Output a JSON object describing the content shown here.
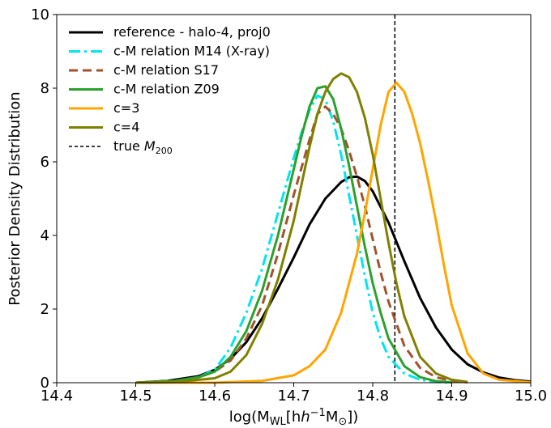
{
  "chart_data": {
    "type": "line",
    "xlabel": "log(M_WL[h^-1 M_☉])",
    "ylabel": "Posterior Density Distribution",
    "xlim": [
      14.4,
      15.0
    ],
    "ylim": [
      0,
      10
    ],
    "x_ticks": [
      "14.4",
      "14.5",
      "14.6",
      "14.7",
      "14.8",
      "14.9",
      "15.0"
    ],
    "y_ticks": [
      "0",
      "2",
      "4",
      "6",
      "8",
      "10"
    ],
    "legend_position": "top-left",
    "grid": false,
    "true_m200": 14.828,
    "series": [
      {
        "name": "reference - halo-4, proj0",
        "color": "#000000",
        "style": "solid",
        "x": [
          14.5,
          14.54,
          14.58,
          14.6,
          14.62,
          14.64,
          14.66,
          14.68,
          14.7,
          14.72,
          14.74,
          14.76,
          14.77,
          14.78,
          14.79,
          14.8,
          14.82,
          14.84,
          14.86,
          14.88,
          14.9,
          14.92,
          14.94,
          14.96,
          14.98,
          15.0
        ],
        "y": [
          0.0,
          0.05,
          0.18,
          0.35,
          0.65,
          1.1,
          1.75,
          2.55,
          3.4,
          4.3,
          5.0,
          5.45,
          5.58,
          5.6,
          5.48,
          5.2,
          4.35,
          3.3,
          2.3,
          1.5,
          0.9,
          0.5,
          0.28,
          0.14,
          0.07,
          0.03
        ]
      },
      {
        "name": "c-M relation M14 (X-ray)",
        "color": "#00e5ee",
        "style": "dashdot",
        "x": [
          14.5,
          14.55,
          14.58,
          14.6,
          14.62,
          14.64,
          14.66,
          14.68,
          14.7,
          14.71,
          14.72,
          14.73,
          14.74,
          14.75,
          14.76,
          14.77,
          14.78,
          14.79,
          14.8,
          14.81,
          14.82,
          14.84,
          14.86,
          14.88,
          14.9
        ],
        "y": [
          0.0,
          0.05,
          0.15,
          0.35,
          0.95,
          1.9,
          3.1,
          4.6,
          6.1,
          6.8,
          7.4,
          7.8,
          7.7,
          7.1,
          6.2,
          5.1,
          4.0,
          2.9,
          1.9,
          1.2,
          0.7,
          0.25,
          0.08,
          0.02,
          0.0
        ]
      },
      {
        "name": "c-M relation S17",
        "color": "#a0522d",
        "style": "dashed",
        "x": [
          14.5,
          14.55,
          14.58,
          14.6,
          14.62,
          14.64,
          14.66,
          14.68,
          14.7,
          14.72,
          14.73,
          14.74,
          14.75,
          14.76,
          14.77,
          14.78,
          14.79,
          14.8,
          14.81,
          14.82,
          14.84,
          14.86,
          14.88,
          14.9,
          14.92
        ],
        "y": [
          0.0,
          0.05,
          0.15,
          0.3,
          0.6,
          1.2,
          2.1,
          3.5,
          5.1,
          6.6,
          7.3,
          7.5,
          7.3,
          6.9,
          6.3,
          5.6,
          4.8,
          3.9,
          3.0,
          2.2,
          1.0,
          0.4,
          0.15,
          0.05,
          0.01
        ]
      },
      {
        "name": "c-M relation Z09",
        "color": "#2ca02c",
        "style": "solid",
        "x": [
          14.5,
          14.55,
          14.58,
          14.6,
          14.62,
          14.64,
          14.66,
          14.68,
          14.7,
          14.71,
          14.72,
          14.73,
          14.74,
          14.75,
          14.76,
          14.77,
          14.78,
          14.79,
          14.8,
          14.81,
          14.82,
          14.84,
          14.86,
          14.88,
          14.9
        ],
        "y": [
          0.0,
          0.05,
          0.15,
          0.3,
          0.7,
          1.4,
          2.5,
          4.0,
          5.8,
          6.7,
          7.5,
          8.0,
          8.05,
          7.7,
          6.9,
          5.9,
          4.8,
          3.7,
          2.7,
          1.9,
          1.2,
          0.45,
          0.15,
          0.04,
          0.01
        ]
      },
      {
        "name": "c=3",
        "color": "#ffa500",
        "style": "solid",
        "x": [
          14.5,
          14.6,
          14.66,
          14.7,
          14.72,
          14.74,
          14.76,
          14.78,
          14.79,
          14.8,
          14.81,
          14.82,
          14.83,
          14.84,
          14.85,
          14.86,
          14.87,
          14.88,
          14.89,
          14.9,
          14.92,
          14.94,
          14.96,
          15.0
        ],
        "y": [
          0.0,
          0.0,
          0.05,
          0.2,
          0.45,
          0.9,
          1.9,
          3.5,
          4.6,
          5.8,
          7.0,
          7.9,
          8.15,
          7.9,
          7.3,
          6.5,
          5.5,
          4.4,
          3.2,
          2.1,
          0.8,
          0.25,
          0.08,
          0.01
        ]
      },
      {
        "name": "c=4",
        "color": "#808000",
        "style": "solid",
        "x": [
          14.5,
          14.55,
          14.6,
          14.62,
          14.64,
          14.66,
          14.68,
          14.7,
          14.72,
          14.73,
          14.74,
          14.75,
          14.76,
          14.77,
          14.78,
          14.79,
          14.8,
          14.81,
          14.82,
          14.83,
          14.84,
          14.86,
          14.88,
          14.9,
          14.92
        ],
        "y": [
          0.0,
          0.02,
          0.12,
          0.3,
          0.75,
          1.6,
          2.8,
          4.4,
          6.4,
          7.3,
          7.9,
          8.25,
          8.4,
          8.3,
          7.9,
          7.2,
          6.2,
          5.0,
          3.8,
          2.7,
          1.8,
          0.7,
          0.25,
          0.08,
          0.02
        ]
      },
      {
        "name": "true M200",
        "color": "#000000",
        "style": "vline-dashed"
      }
    ]
  },
  "legend": [
    {
      "label": "reference - halo-4, proj0",
      "color": "#000000",
      "style": "solid"
    },
    {
      "label": "c-M relation M14 (X-ray)",
      "color": "#00e5ee",
      "style": "dashdot"
    },
    {
      "label": "c-M relation S17",
      "color": "#a0522d",
      "style": "dashed"
    },
    {
      "label": "c-M relation Z09",
      "color": "#2ca02c",
      "style": "solid"
    },
    {
      "label": "c=3",
      "color": "#ffa500",
      "style": "solid"
    },
    {
      "label": "c=4",
      "color": "#808000",
      "style": "solid"
    },
    {
      "label": "true M",
      "label_sub": "200",
      "color": "#000000",
      "style": "thin-dashed"
    }
  ],
  "axis_labels": {
    "x_main": "log(M",
    "x_sub": "WL",
    "x_mid": "[h",
    "x_sup": "−1",
    "x_unit": "M",
    "x_unit_sub": "⊙",
    "x_close": "])",
    "y": "Posterior Density Distribution"
  }
}
